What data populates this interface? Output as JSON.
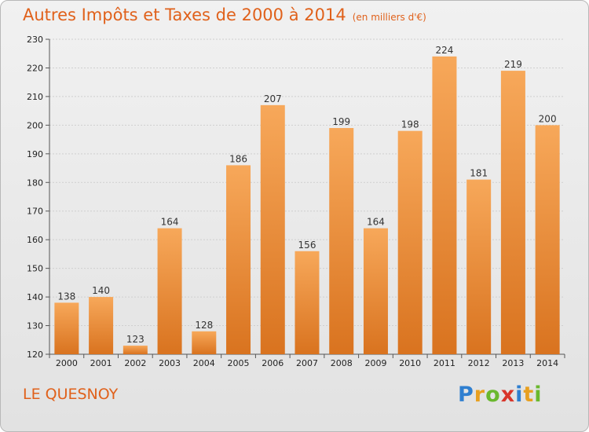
{
  "title": "Autres Impôts et Taxes de 2000 à 2014",
  "title_unit": "(en milliers d'€)",
  "place": "LE QUESNOY",
  "logo_letters": [
    {
      "ch": "P",
      "color": "#2f7fd0"
    },
    {
      "ch": "r",
      "color": "#e8a020"
    },
    {
      "ch": "o",
      "color": "#6ab82e"
    },
    {
      "ch": "x",
      "color": "#d8352a"
    },
    {
      "ch": "i",
      "color": "#2f7fd0"
    },
    {
      "ch": "t",
      "color": "#e8a020"
    },
    {
      "ch": "i",
      "color": "#6ab82e"
    }
  ],
  "colors": {
    "accent": "#e0611b",
    "bar_top": "#f7a85a",
    "bar_bottom": "#d9731f"
  },
  "chart_data": {
    "type": "bar",
    "categories": [
      "2000",
      "2001",
      "2002",
      "2003",
      "2004",
      "2005",
      "2006",
      "2007",
      "2008",
      "2009",
      "2010",
      "2011",
      "2012",
      "2013",
      "2014"
    ],
    "values": [
      138,
      140,
      123,
      164,
      128,
      186,
      207,
      156,
      199,
      164,
      198,
      224,
      181,
      219,
      200
    ],
    "ylim": [
      120,
      230
    ],
    "yticks": [
      120,
      130,
      140,
      150,
      160,
      170,
      180,
      190,
      200,
      210,
      220,
      230
    ],
    "grid": true,
    "legend": "none"
  }
}
